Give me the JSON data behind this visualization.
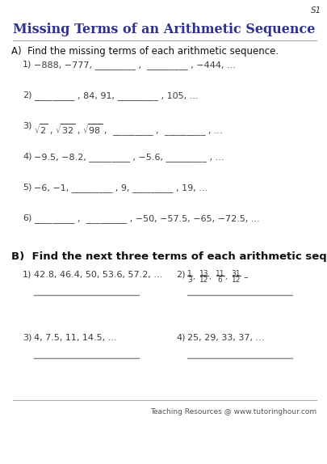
{
  "title": "Missing Terms of an Arithmetic Sequence",
  "page_label": "S1",
  "section_a_header": "A)  Find the missing terms of each arithmetic sequence.",
  "section_b_header": "B)  Find the next three terms of each arithmetic sequence.",
  "section_a_items": [
    {
      "num": "1)",
      "text": "−888, −777, _________ ,  _________ , −444, ..."
    },
    {
      "num": "2)",
      "text": "_________ , 84, 91, _________ , 105, ..."
    },
    {
      "num": "3)",
      "sqrt": true
    },
    {
      "num": "4)",
      "text": "−9.5, −8.2, _________ , −5.6, _________ , ..."
    },
    {
      "num": "5)",
      "text": "−6, −1, _________ , 9, _________ , 19, ..."
    },
    {
      "num": "6)",
      "text": "_________ ,  _________ , −50, −57.5, −65, −72.5, ..."
    }
  ],
  "section_b_rows": [
    {
      "left_num": "1)",
      "left_text": "42.8, 46.4, 50, 53.6, 57.2, ...",
      "right_num": "2)",
      "right_frac": true
    },
    {
      "left_num": "3)",
      "left_text": "4, 7.5, 11, 14.5, ...",
      "right_num": "4)",
      "right_text": "25, 29, 33, 37, ..."
    }
  ],
  "footer": "Teaching Resources @ www.tutoringhour.com",
  "title_color": "#2e3191",
  "text_color": "#3a3a3a",
  "line_color": "#888888",
  "bg_color": "#ffffff"
}
